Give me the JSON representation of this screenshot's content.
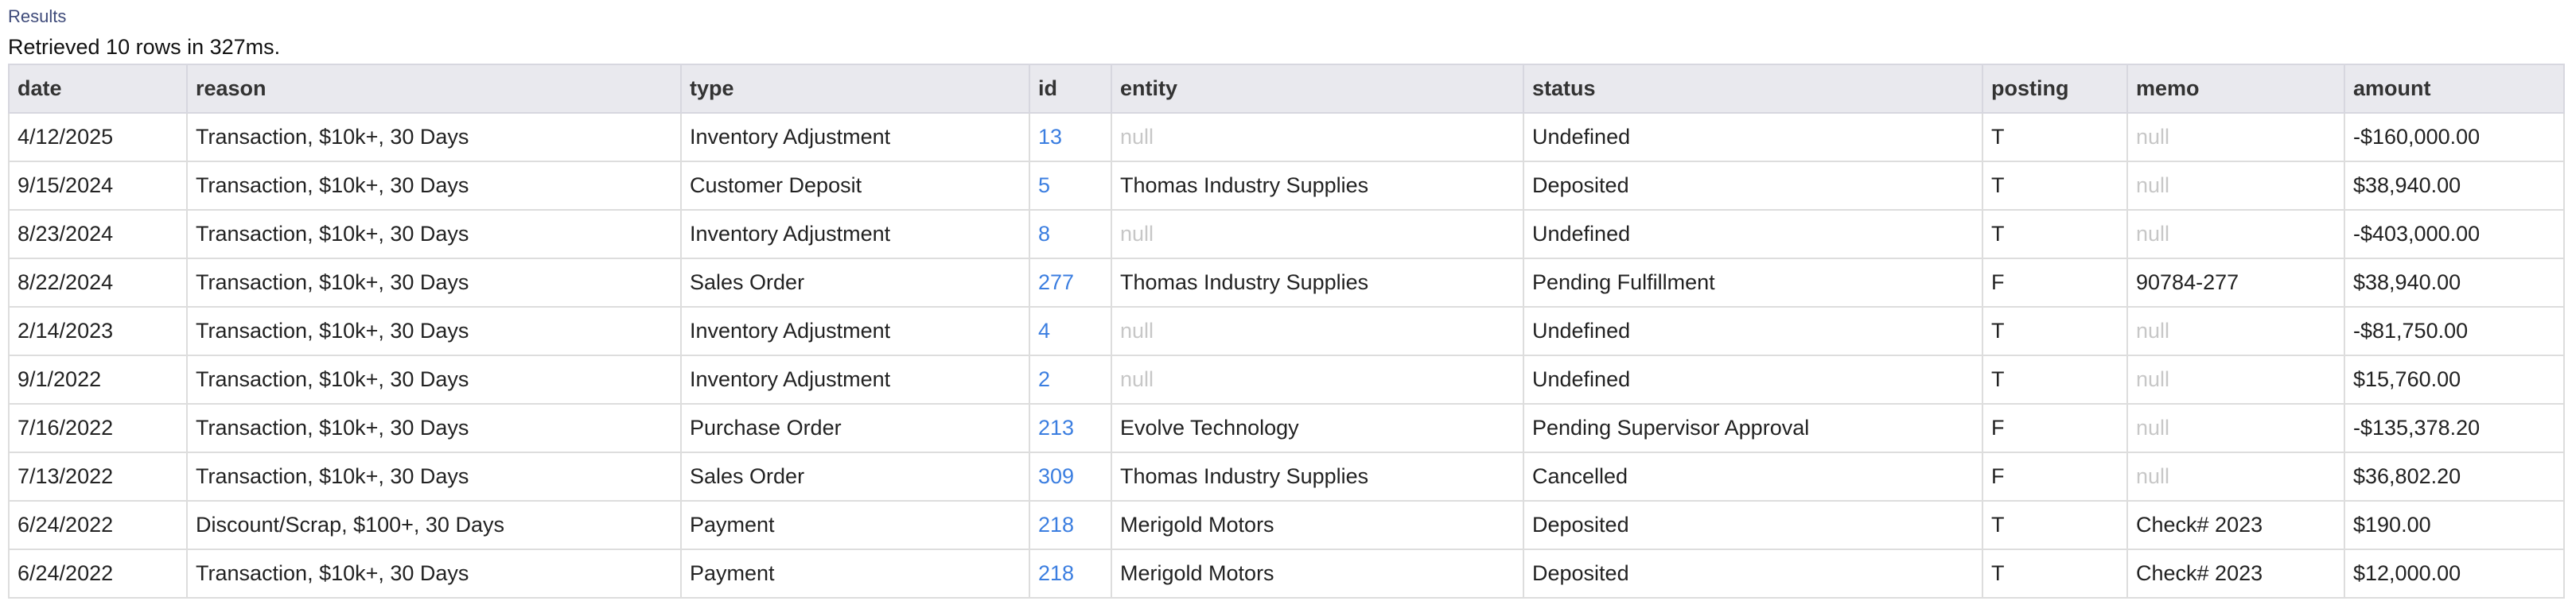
{
  "page": {
    "section_title": "Results",
    "summary": "Retrieved 10 rows in 327ms."
  },
  "table": {
    "columns": [
      "date",
      "reason",
      "type",
      "id",
      "entity",
      "status",
      "posting",
      "memo",
      "amount"
    ],
    "rows": [
      {
        "date": "4/12/2025",
        "reason": "Transaction, $10k+, 30 Days",
        "type": "Inventory Adjustment",
        "id": "13",
        "entity": "null",
        "status": "Undefined",
        "posting": "T",
        "memo": "null",
        "amount": "-$160,000.00"
      },
      {
        "date": "9/15/2024",
        "reason": "Transaction, $10k+, 30 Days",
        "type": "Customer Deposit",
        "id": "5",
        "entity": "Thomas Industry Supplies",
        "status": "Deposited",
        "posting": "T",
        "memo": "null",
        "amount": "$38,940.00"
      },
      {
        "date": "8/23/2024",
        "reason": "Transaction, $10k+, 30 Days",
        "type": "Inventory Adjustment",
        "id": "8",
        "entity": "null",
        "status": "Undefined",
        "posting": "T",
        "memo": "null",
        "amount": "-$403,000.00"
      },
      {
        "date": "8/22/2024",
        "reason": "Transaction, $10k+, 30 Days",
        "type": "Sales Order",
        "id": "277",
        "entity": "Thomas Industry Supplies",
        "status": "Pending Fulfillment",
        "posting": "F",
        "memo": "90784-277",
        "amount": "$38,940.00"
      },
      {
        "date": "2/14/2023",
        "reason": "Transaction, $10k+, 30 Days",
        "type": "Inventory Adjustment",
        "id": "4",
        "entity": "null",
        "status": "Undefined",
        "posting": "T",
        "memo": "null",
        "amount": "-$81,750.00"
      },
      {
        "date": "9/1/2022",
        "reason": "Transaction, $10k+, 30 Days",
        "type": "Inventory Adjustment",
        "id": "2",
        "entity": "null",
        "status": "Undefined",
        "posting": "T",
        "memo": "null",
        "amount": "$15,760.00"
      },
      {
        "date": "7/16/2022",
        "reason": "Transaction, $10k+, 30 Days",
        "type": "Purchase Order",
        "id": "213",
        "entity": "Evolve Technology",
        "status": "Pending Supervisor Approval",
        "posting": "F",
        "memo": "null",
        "amount": "-$135,378.20"
      },
      {
        "date": "7/13/2022",
        "reason": "Transaction, $10k+, 30 Days",
        "type": "Sales Order",
        "id": "309",
        "entity": "Thomas Industry Supplies",
        "status": "Cancelled",
        "posting": "F",
        "memo": "null",
        "amount": "$36,802.20"
      },
      {
        "date": "6/24/2022",
        "reason": "Discount/Scrap, $100+, 30 Days",
        "type": "Payment",
        "id": "218",
        "entity": "Merigold Motors",
        "status": "Deposited",
        "posting": "T",
        "memo": "Check# 2023",
        "amount": "$190.00"
      },
      {
        "date": "6/24/2022",
        "reason": "Transaction, $10k+, 30 Days",
        "type": "Payment",
        "id": "218",
        "entity": "Merigold Motors",
        "status": "Deposited",
        "posting": "T",
        "memo": "Check# 2023",
        "amount": "$12,000.00"
      }
    ]
  },
  "colors": {
    "link": "#3b7ee0",
    "null_text": "#c7c7c7",
    "header_bg": "#e9e9ee"
  }
}
